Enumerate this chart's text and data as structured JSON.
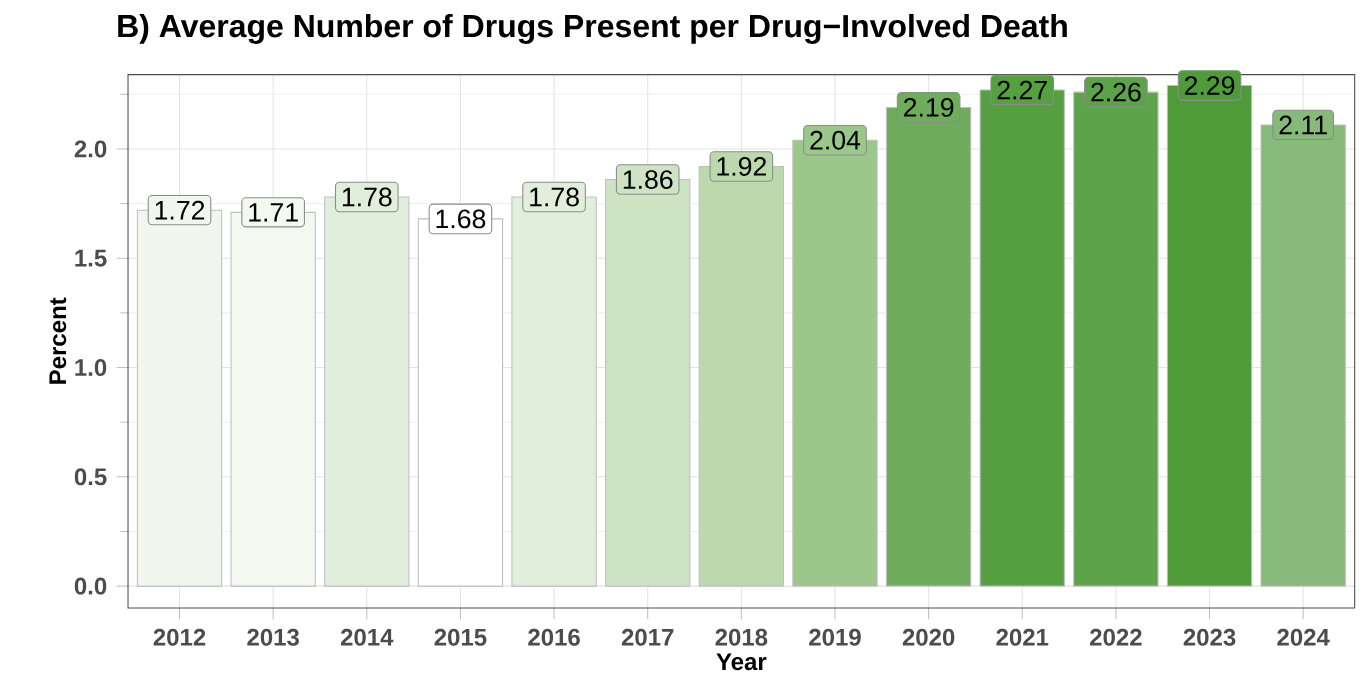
{
  "chart_data": {
    "type": "bar",
    "title": "B) Average Number of Drugs Present per Drug−Involved Death",
    "xlabel": "Year",
    "ylabel": "Percent",
    "categories": [
      "2012",
      "2013",
      "2014",
      "2015",
      "2016",
      "2017",
      "2018",
      "2019",
      "2020",
      "2021",
      "2022",
      "2023",
      "2024"
    ],
    "values": [
      1.72,
      1.71,
      1.78,
      1.68,
      1.78,
      1.86,
      1.92,
      2.04,
      2.19,
      2.27,
      2.26,
      2.29,
      2.11
    ],
    "colors": [
      "#f1f7ee",
      "#f3f8f1",
      "#e1eedb",
      "#ffffff",
      "#e1eedb",
      "#cde3c4",
      "#bcd9ae",
      "#9cc78a",
      "#6fad5c",
      "#56a042",
      "#5da34a",
      "#4f9b39",
      "#86b97a"
    ],
    "ylim": [
      -0.1,
      2.34
    ],
    "yticks": [
      {
        "value": 0,
        "label": "0.0"
      },
      0.5,
      {
        "value": 1,
        "label": "1.0"
      },
      1.5,
      {
        "value": 2,
        "label": "2.0"
      }
    ],
    "grid": true,
    "data_labels": true
  }
}
